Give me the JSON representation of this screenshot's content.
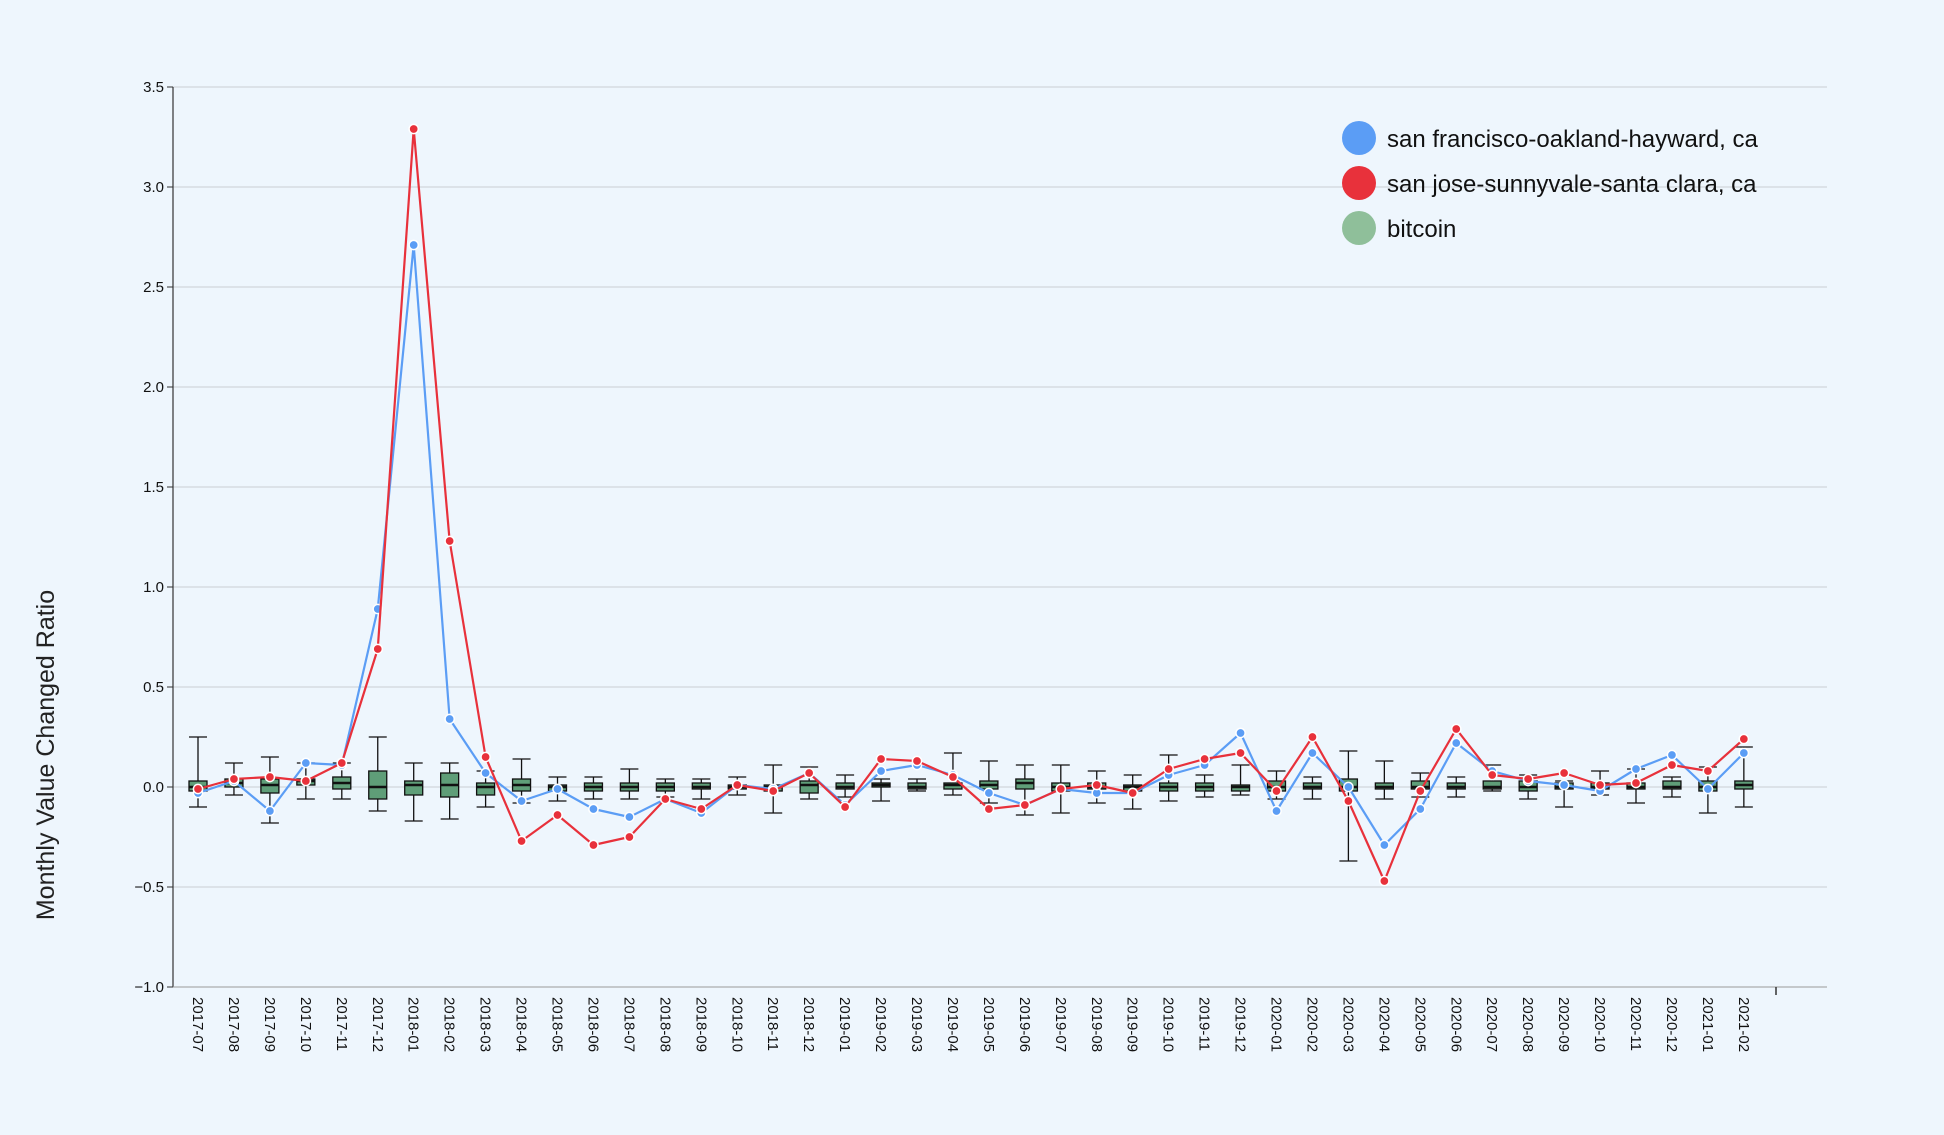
{
  "chart_data": {
    "type": "line",
    "title": "",
    "xlabel": "",
    "ylabel": "Monthly Value Changed Ratio",
    "ylim": [
      -1.0,
      3.5
    ],
    "yticks": [
      -1.0,
      -0.5,
      0.0,
      0.5,
      1.0,
      1.5,
      2.0,
      2.5,
      3.0,
      3.5
    ],
    "ytick_labels": [
      "−1.0",
      "−0.5",
      "0.0",
      "0.5",
      "1.0",
      "1.5",
      "2.0",
      "2.5",
      "3.0",
      "3.5"
    ],
    "grid": "horizontal",
    "legend_position": "top-right",
    "categories": [
      "2017-07",
      "2017-08",
      "2017-09",
      "2017-10",
      "2017-11",
      "2017-12",
      "2018-01",
      "2018-02",
      "2018-03",
      "2018-04",
      "2018-05",
      "2018-06",
      "2018-07",
      "2018-08",
      "2018-09",
      "2018-10",
      "2018-11",
      "2018-12",
      "2019-01",
      "2019-02",
      "2019-03",
      "2019-04",
      "2019-05",
      "2019-06",
      "2019-07",
      "2019-08",
      "2019-09",
      "2019-10",
      "2019-11",
      "2019-12",
      "2020-01",
      "2020-02",
      "2020-03",
      "2020-04",
      "2020-05",
      "2020-06",
      "2020-07",
      "2020-08",
      "2020-09",
      "2020-10",
      "2020-11",
      "2020-12",
      "2021-01",
      "2021-02"
    ],
    "series": [
      {
        "name": "san francisco-oakland-hayward, ca",
        "type": "line",
        "color": "#5b9df5",
        "values": [
          -0.03,
          0.03,
          -0.12,
          0.12,
          0.11,
          0.89,
          2.71,
          0.34,
          0.07,
          -0.07,
          -0.01,
          -0.11,
          -0.15,
          -0.06,
          -0.13,
          0.01,
          -0.01,
          0.07,
          -0.09,
          0.08,
          0.11,
          0.06,
          -0.03,
          -0.09,
          -0.01,
          -0.03,
          -0.03,
          0.06,
          0.11,
          0.27,
          -0.12,
          0.17,
          0.0,
          -0.29,
          -0.11,
          0.22,
          0.08,
          0.03,
          0.01,
          -0.02,
          0.09,
          0.16,
          -0.01,
          0.17
        ]
      },
      {
        "name": "san jose-sunnyvale-santa clara, ca",
        "type": "line",
        "color": "#e8313b",
        "values": [
          -0.01,
          0.04,
          0.05,
          0.03,
          0.12,
          0.69,
          3.29,
          1.23,
          0.15,
          -0.27,
          -0.14,
          -0.29,
          -0.25,
          -0.06,
          -0.11,
          0.01,
          -0.02,
          0.07,
          -0.1,
          0.14,
          0.13,
          0.05,
          -0.11,
          -0.09,
          -0.01,
          0.01,
          -0.03,
          0.09,
          0.14,
          0.17,
          -0.02,
          0.25,
          -0.07,
          -0.47,
          -0.02,
          0.29,
          0.06,
          0.04,
          0.07,
          0.01,
          0.02,
          0.11,
          0.08,
          0.24
        ]
      },
      {
        "name": "bitcoin",
        "type": "box",
        "color": "#5f9e78",
        "whisker_low": [
          -0.1,
          -0.04,
          -0.18,
          -0.06,
          -0.06,
          -0.12,
          -0.17,
          -0.16,
          -0.1,
          -0.08,
          -0.07,
          -0.06,
          -0.06,
          -0.05,
          -0.06,
          -0.04,
          -0.13,
          -0.06,
          -0.05,
          -0.07,
          -0.02,
          -0.04,
          -0.08,
          -0.14,
          -0.13,
          -0.08,
          -0.11,
          -0.07,
          -0.05,
          -0.04,
          -0.06,
          -0.06,
          -0.37,
          -0.06,
          -0.05,
          -0.05,
          -0.02,
          -0.06,
          -0.1,
          -0.04,
          -0.08,
          -0.05,
          -0.13,
          -0.1
        ],
        "q1": [
          -0.02,
          0.0,
          -0.03,
          0.01,
          -0.01,
          -0.06,
          -0.04,
          -0.05,
          -0.04,
          -0.02,
          -0.02,
          -0.02,
          -0.02,
          -0.02,
          -0.01,
          -0.01,
          -0.02,
          -0.03,
          -0.01,
          0.0,
          -0.01,
          -0.01,
          -0.01,
          -0.01,
          -0.02,
          -0.01,
          -0.02,
          -0.02,
          -0.02,
          -0.02,
          -0.02,
          -0.01,
          -0.02,
          -0.01,
          -0.01,
          -0.01,
          -0.01,
          -0.02,
          -0.01,
          -0.01,
          -0.01,
          -0.01,
          -0.02,
          -0.01
        ],
        "median": [
          0.0,
          0.02,
          0.01,
          0.03,
          0.02,
          0.0,
          0.01,
          0.01,
          0.0,
          0.01,
          0.0,
          0.0,
          0.0,
          0.0,
          0.0,
          0.0,
          0.0,
          0.01,
          0.0,
          0.01,
          0.0,
          0.01,
          0.01,
          0.02,
          0.0,
          0.0,
          0.0,
          0.0,
          0.0,
          0.0,
          0.0,
          0.0,
          0.0,
          0.0,
          0.0,
          0.0,
          0.0,
          0.0,
          0.0,
          0.0,
          0.0,
          0.0,
          0.0,
          0.01
        ],
        "q3": [
          0.03,
          0.04,
          0.04,
          0.04,
          0.05,
          0.08,
          0.03,
          0.07,
          0.02,
          0.04,
          0.01,
          0.02,
          0.02,
          0.02,
          0.02,
          0.01,
          0.01,
          0.03,
          0.02,
          0.02,
          0.02,
          0.02,
          0.03,
          0.04,
          0.02,
          0.02,
          0.01,
          0.02,
          0.02,
          0.01,
          0.03,
          0.02,
          0.04,
          0.02,
          0.03,
          0.02,
          0.03,
          0.03,
          0.02,
          0.02,
          0.02,
          0.03,
          0.03,
          0.03
        ],
        "whisker_high": [
          0.25,
          0.12,
          0.15,
          0.12,
          0.12,
          0.25,
          0.12,
          0.12,
          0.08,
          0.14,
          0.05,
          0.05,
          0.09,
          0.04,
          0.04,
          0.05,
          0.11,
          0.1,
          0.06,
          0.04,
          0.04,
          0.17,
          0.13,
          0.11,
          0.11,
          0.08,
          0.06,
          0.16,
          0.06,
          0.11,
          0.08,
          0.05,
          0.18,
          0.13,
          0.07,
          0.05,
          0.11,
          0.06,
          0.03,
          0.08,
          0.09,
          0.05,
          0.1,
          0.2
        ]
      }
    ],
    "legend": [
      {
        "name": "san francisco-oakland-hayward, ca",
        "color": "#5b9df5"
      },
      {
        "name": "san jose-sunnyvale-santa clara, ca",
        "color": "#e8313b"
      },
      {
        "name": "bitcoin",
        "color": "#8fbf9a"
      }
    ]
  }
}
